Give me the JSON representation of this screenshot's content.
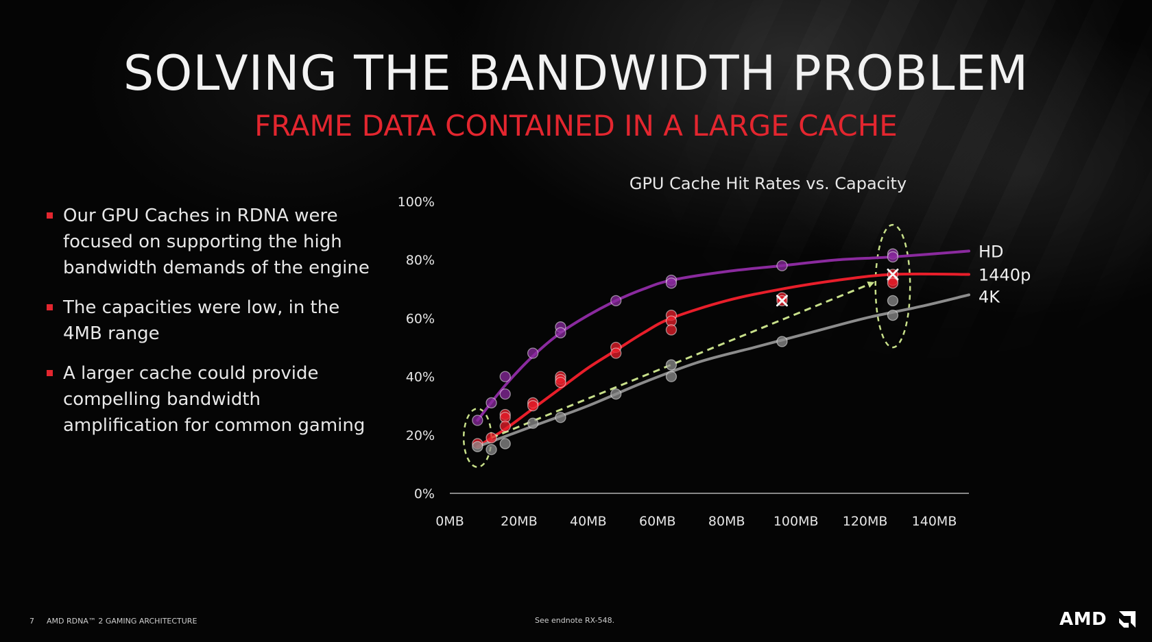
{
  "slide": {
    "title": "SOLVING THE BANDWIDTH PROBLEM",
    "subtitle": "FRAME DATA CONTAINED IN A LARGE CACHE",
    "bullets": [
      "Our GPU Caches in RDNA were focused on supporting the high bandwidth demands of the engine",
      "The capacities were low, in the 4MB range",
      "A larger cache could provide compelling bandwidth amplification for common gaming"
    ],
    "footer": {
      "page_number": "7",
      "text": "AMD RDNA™ 2 GAMING ARCHITECTURE",
      "endnote": "See endnote RX-548."
    },
    "logo": "AMD",
    "colors": {
      "accent": "#e3262f",
      "hd": "#8a2a9e",
      "p1440": "#e81e2a",
      "k4": "#8c8c8c",
      "trend": "#c8e08a"
    }
  },
  "chart_data": {
    "type": "line",
    "title": "GPU Cache Hit Rates vs. Capacity",
    "xlabel": "",
    "ylabel": "",
    "xlim": [
      0,
      150
    ],
    "ylim": [
      0,
      100
    ],
    "x_ticks": [
      "0MB",
      "20MB",
      "40MB",
      "60MB",
      "80MB",
      "100MB",
      "120MB",
      "140MB"
    ],
    "x_tick_values": [
      0,
      20,
      40,
      60,
      80,
      100,
      120,
      140
    ],
    "y_ticks": [
      "0%",
      "20%",
      "40%",
      "60%",
      "80%",
      "100%"
    ],
    "y_tick_values": [
      0,
      20,
      40,
      60,
      80,
      100
    ],
    "grid": false,
    "series": [
      {
        "name": "HD",
        "color": "#8a2a9e",
        "curve": [
          [
            8,
            25
          ],
          [
            16,
            37
          ],
          [
            24,
            47
          ],
          [
            32,
            55
          ],
          [
            40,
            61
          ],
          [
            48,
            66
          ],
          [
            56,
            70
          ],
          [
            64,
            73
          ],
          [
            80,
            76
          ],
          [
            96,
            78
          ],
          [
            112,
            80
          ],
          [
            128,
            81
          ],
          [
            150,
            83
          ]
        ],
        "points": [
          [
            8,
            25
          ],
          [
            12,
            31
          ],
          [
            16,
            40
          ],
          [
            16,
            34
          ],
          [
            24,
            48
          ],
          [
            32,
            57
          ],
          [
            32,
            55
          ],
          [
            48,
            66
          ],
          [
            64,
            73
          ],
          [
            64,
            72
          ],
          [
            96,
            78
          ],
          [
            128,
            82
          ],
          [
            128,
            81
          ]
        ]
      },
      {
        "name": "1440p",
        "color": "#e81e2a",
        "curve": [
          [
            8,
            16
          ],
          [
            16,
            22
          ],
          [
            24,
            29
          ],
          [
            32,
            36
          ],
          [
            40,
            43
          ],
          [
            48,
            49
          ],
          [
            56,
            55
          ],
          [
            64,
            60
          ],
          [
            80,
            66
          ],
          [
            96,
            70
          ],
          [
            112,
            73
          ],
          [
            128,
            75
          ],
          [
            150,
            75
          ]
        ],
        "points": [
          [
            8,
            17
          ],
          [
            12,
            19
          ],
          [
            16,
            27
          ],
          [
            16,
            26
          ],
          [
            16,
            23
          ],
          [
            24,
            31
          ],
          [
            24,
            30
          ],
          [
            32,
            40
          ],
          [
            32,
            39
          ],
          [
            32,
            38
          ],
          [
            48,
            50
          ],
          [
            48,
            48
          ],
          [
            64,
            61
          ],
          [
            64,
            59
          ],
          [
            64,
            56
          ],
          [
            96,
            67
          ],
          [
            96,
            66
          ],
          [
            128,
            75
          ],
          [
            128,
            73
          ],
          [
            128,
            72
          ]
        ]
      },
      {
        "name": "4K",
        "color": "#8c8c8c",
        "curve": [
          [
            8,
            16
          ],
          [
            24,
            23
          ],
          [
            40,
            30
          ],
          [
            56,
            38
          ],
          [
            72,
            45
          ],
          [
            88,
            50
          ],
          [
            104,
            55
          ],
          [
            120,
            60
          ],
          [
            136,
            64
          ],
          [
            150,
            68
          ]
        ],
        "points": [
          [
            8,
            16
          ],
          [
            12,
            15
          ],
          [
            16,
            17
          ],
          [
            24,
            24
          ],
          [
            32,
            26
          ],
          [
            48,
            34
          ],
          [
            64,
            44
          ],
          [
            64,
            40
          ],
          [
            96,
            52
          ],
          [
            128,
            66
          ],
          [
            128,
            61
          ]
        ]
      }
    ],
    "trend_arrow": {
      "style": "dashed",
      "from": [
        12,
        19
      ],
      "to": [
        122,
        72
      ]
    },
    "highlights": [
      {
        "center": [
          8,
          19
        ],
        "rx_units": 4,
        "ry_units": 10
      },
      {
        "center": [
          128,
          71
        ],
        "rx_units": 5,
        "ry_units": 21
      }
    ],
    "annotations": [
      {
        "marker": "x",
        "at": [
          96,
          66
        ]
      },
      {
        "marker": "x",
        "at": [
          128,
          75
        ]
      }
    ]
  }
}
